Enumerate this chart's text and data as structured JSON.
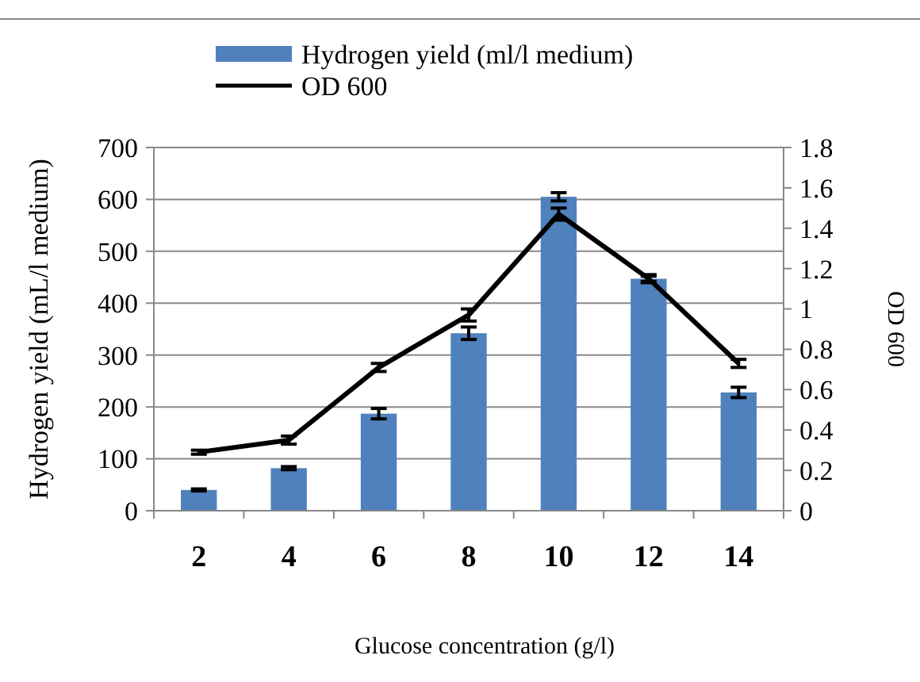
{
  "chart_data": {
    "type": "bar",
    "xlabel": "Glucose concentration (g/l)",
    "ylabel": "Hydrogen yield (mL/l medium)",
    "y2label": "OD 600",
    "categories": [
      "2",
      "4",
      "6",
      "8",
      "10",
      "12",
      "14"
    ],
    "series": [
      {
        "name": "Hydrogen yield (ml/l medium)",
        "color": "#4f81bd",
        "values": [
          40,
          82,
          187,
          342,
          605,
          447,
          228
        ],
        "errors": [
          2,
          3,
          10,
          12,
          8,
          5,
          10
        ]
      },
      {
        "name": "OD 600",
        "type": "line",
        "axis": "y2",
        "color": "#000000",
        "values": [
          0.29,
          0.35,
          0.71,
          0.97,
          1.47,
          1.15,
          0.73
        ],
        "errors": [
          0.01,
          0.02,
          0.02,
          0.03,
          0.03,
          0.02,
          0.02
        ]
      }
    ],
    "ylim": [
      0,
      700
    ],
    "yticks": [
      0,
      100,
      200,
      300,
      400,
      500,
      600,
      700
    ],
    "y2lim": [
      0,
      1.8
    ],
    "y2ticks": [
      0,
      0.2,
      0.4,
      0.6,
      0.8,
      1,
      1.2,
      1.4,
      1.6,
      1.8
    ],
    "grid": "y",
    "legend": "top",
    "marker": "none",
    "line_style": "solid"
  }
}
